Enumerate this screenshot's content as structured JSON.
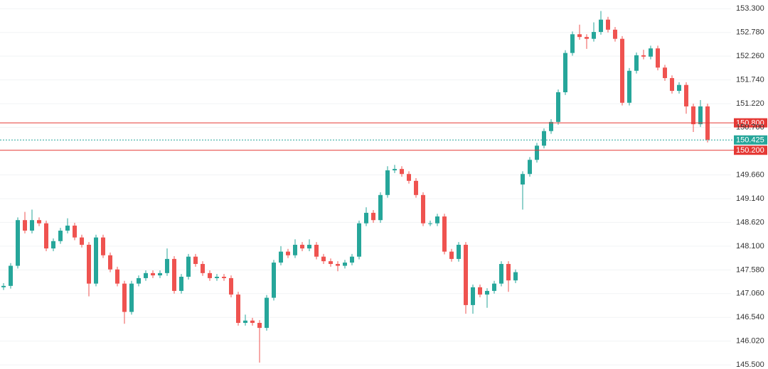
{
  "chart_data": {
    "type": "candlestick",
    "up_color": "#26a69a",
    "down_color": "#ef5350",
    "grid": true,
    "ylim": [
      145.41,
      153.49
    ],
    "yticks": [
      {
        "value": 145.5,
        "label": "145.500"
      },
      {
        "value": 146.02,
        "label": "146.020"
      },
      {
        "value": 146.54,
        "label": "146.540"
      },
      {
        "value": 147.06,
        "label": "147.060"
      },
      {
        "value": 147.58,
        "label": "147.580"
      },
      {
        "value": 148.1,
        "label": "148.100"
      },
      {
        "value": 148.62,
        "label": "148.620"
      },
      {
        "value": 149.14,
        "label": "149.140"
      },
      {
        "value": 149.66,
        "label": "149.660"
      },
      {
        "value": 150.7,
        "label": "150.700"
      },
      {
        "value": 151.22,
        "label": "151.220"
      },
      {
        "value": 151.74,
        "label": "151.740"
      },
      {
        "value": 152.26,
        "label": "152.260"
      },
      {
        "value": 152.78,
        "label": "152.780"
      },
      {
        "value": 153.3,
        "label": "153.300"
      }
    ],
    "levels": [
      {
        "value": 150.8,
        "label": "150.800",
        "color": "#e53935",
        "style": "solid"
      },
      {
        "value": 150.425,
        "label": "150.425",
        "color": "#26a69a",
        "style": "dotted"
      },
      {
        "value": 150.2,
        "label": "150.200",
        "color": "#e53935",
        "style": "solid"
      }
    ],
    "open": [
      147.2,
      147.23,
      147.67,
      148.67,
      148.44,
      148.67,
      148.6,
      148.05,
      148.21,
      148.44,
      148.55,
      148.29,
      148.13,
      147.28,
      148.29,
      147.9,
      147.59,
      147.28,
      146.66,
      147.28,
      147.4,
      147.51,
      147.46,
      147.51,
      147.82,
      147.12,
      147.43,
      147.87,
      147.71,
      147.51,
      147.4,
      147.43,
      147.4,
      147.04,
      146.42,
      146.47,
      146.42,
      146.31,
      146.97,
      147.74,
      147.98,
      147.9,
      148.13,
      148.05,
      148.13,
      147.87,
      147.77,
      147.71,
      147.67,
      147.74,
      147.87,
      148.6,
      148.83,
      148.67,
      149.22,
      149.76,
      149.79,
      149.68,
      149.53,
      149.22,
      148.6,
      148.6,
      148.75,
      147.98,
      147.82,
      148.13,
      146.81,
      147.2,
      147.04,
      147.12,
      147.28,
      147.71,
      147.35,
      149.45,
      149.68,
      149.99,
      150.3,
      150.62,
      150.82,
      151.47,
      152.33,
      152.74,
      152.68,
      152.64,
      152.79,
      153.06,
      152.84,
      152.64,
      151.24,
      151.94,
      152.28,
      152.25,
      152.43,
      152.01,
      151.78,
      151.5,
      151.63,
      151.16,
      150.77,
      151.16
    ],
    "high": [
      147.29,
      147.73,
      148.73,
      148.85,
      148.9,
      148.73,
      148.66,
      148.27,
      148.5,
      148.71,
      148.61,
      148.35,
      148.19,
      148.35,
      148.35,
      147.96,
      147.65,
      147.34,
      147.34,
      147.46,
      147.57,
      147.57,
      147.57,
      148.05,
      147.88,
      147.49,
      147.93,
      147.93,
      147.77,
      147.57,
      147.49,
      147.49,
      147.46,
      147.1,
      146.6,
      146.53,
      146.48,
      147.03,
      147.8,
      148.1,
      148.04,
      148.25,
      148.19,
      148.25,
      148.19,
      147.93,
      147.83,
      147.77,
      147.8,
      147.93,
      148.66,
      148.95,
      148.89,
      149.28,
      149.85,
      149.88,
      149.85,
      149.74,
      149.59,
      149.28,
      148.66,
      148.81,
      148.81,
      148.04,
      148.19,
      148.19,
      147.26,
      147.26,
      147.18,
      147.34,
      147.77,
      147.77,
      147.59,
      149.74,
      150.05,
      150.36,
      150.68,
      150.88,
      151.53,
      152.39,
      152.8,
      152.95,
      152.74,
      153.0,
      153.25,
      153.12,
      152.9,
      152.7,
      152.0,
      152.34,
      152.4,
      152.49,
      152.49,
      152.07,
      151.84,
      151.69,
      151.69,
      151.22,
      151.3,
      151.22
    ],
    "low": [
      147.14,
      147.17,
      147.61,
      148.38,
      148.38,
      148.54,
      147.99,
      147.99,
      148.15,
      148.38,
      148.23,
      148.07,
      147.0,
      147.22,
      147.84,
      147.53,
      147.22,
      146.4,
      146.6,
      147.22,
      147.34,
      147.4,
      147.4,
      147.45,
      147.06,
      147.06,
      147.37,
      147.65,
      147.45,
      147.34,
      147.34,
      147.34,
      146.98,
      146.36,
      146.36,
      146.36,
      145.55,
      146.25,
      146.91,
      147.68,
      147.84,
      147.84,
      147.99,
      147.99,
      147.81,
      147.71,
      147.65,
      147.55,
      147.61,
      147.68,
      147.81,
      148.54,
      148.61,
      148.61,
      149.16,
      149.7,
      149.62,
      149.47,
      149.16,
      148.54,
      148.54,
      148.54,
      147.92,
      147.76,
      147.76,
      146.62,
      146.62,
      146.98,
      146.75,
      147.06,
      147.22,
      147.1,
      147.29,
      148.9,
      149.62,
      149.93,
      150.24,
      150.56,
      150.76,
      151.41,
      152.27,
      152.62,
      152.42,
      152.58,
      152.73,
      152.78,
      152.58,
      151.18,
      151.18,
      151.88,
      152.19,
      152.19,
      151.95,
      151.72,
      151.44,
      151.44,
      151.0,
      150.6,
      150.71,
      150.37
    ],
    "close": [
      147.23,
      147.67,
      148.67,
      148.44,
      148.67,
      148.6,
      148.05,
      148.21,
      148.44,
      148.55,
      148.29,
      148.13,
      147.28,
      148.29,
      147.9,
      147.59,
      147.28,
      146.66,
      147.28,
      147.4,
      147.51,
      147.46,
      147.51,
      147.82,
      147.12,
      147.43,
      147.87,
      147.71,
      147.51,
      147.4,
      147.43,
      147.4,
      147.04,
      146.42,
      146.47,
      146.42,
      146.31,
      146.97,
      147.74,
      147.98,
      147.9,
      148.13,
      148.05,
      148.13,
      147.87,
      147.77,
      147.71,
      147.67,
      147.74,
      147.87,
      148.6,
      148.83,
      148.67,
      149.22,
      149.76,
      149.79,
      149.68,
      149.53,
      149.22,
      148.6,
      148.6,
      148.75,
      147.98,
      147.82,
      148.13,
      146.81,
      147.2,
      147.04,
      147.12,
      147.28,
      147.71,
      147.35,
      147.53,
      149.68,
      149.99,
      150.3,
      150.62,
      150.82,
      151.47,
      152.33,
      152.74,
      152.68,
      152.64,
      152.79,
      153.06,
      152.84,
      152.64,
      151.24,
      151.94,
      152.28,
      152.25,
      152.43,
      152.01,
      151.78,
      151.5,
      151.63,
      151.16,
      150.77,
      151.16,
      150.43
    ]
  }
}
